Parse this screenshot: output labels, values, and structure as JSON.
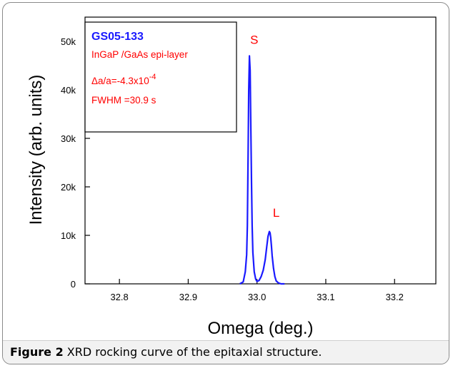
{
  "caption": {
    "label": "Figure 2",
    "text": " XRD rocking curve of the epitaxial structure",
    "period": "."
  },
  "chart_data": {
    "type": "line",
    "title": "",
    "xlabel": "Omega (deg.)",
    "ylabel": "Intensity (arb. units)",
    "xlim": [
      32.75,
      33.26
    ],
    "ylim": [
      0,
      55000
    ],
    "xticks": [
      32.8,
      32.9,
      33.0,
      33.1,
      33.2
    ],
    "xtick_labels": [
      "32.8",
      "32.9",
      "33.0",
      "33.1",
      "33.2"
    ],
    "yticks": [
      0,
      10000,
      20000,
      30000,
      40000,
      50000
    ],
    "ytick_labels": [
      "0",
      "10k",
      "20k",
      "30k",
      "40k",
      "50k"
    ],
    "grid": false,
    "series": [
      {
        "color": "#1a1aff",
        "x": [
          32.975,
          32.98,
          32.983,
          32.985,
          32.986,
          32.987,
          32.988,
          32.989,
          32.99,
          32.991,
          32.992,
          32.993,
          32.994,
          32.996,
          32.998,
          33.0,
          33.003,
          33.006,
          33.009,
          33.012,
          33.014,
          33.016,
          33.018,
          33.019,
          33.02,
          33.021,
          33.022,
          33.024,
          33.026,
          33.028,
          33.031,
          33.035,
          33.04
        ],
        "y": [
          0,
          400,
          2500,
          6000,
          12000,
          26000,
          40000,
          47000,
          44000,
          33000,
          21000,
          12000,
          6500,
          2500,
          1000,
          500,
          700,
          1500,
          2800,
          5000,
          7500,
          9800,
          10800,
          10500,
          9500,
          7800,
          5800,
          3200,
          1500,
          600,
          200,
          0,
          0
        ]
      }
    ],
    "annotations": [
      {
        "text": "S",
        "x": 32.996,
        "y": 49500
      },
      {
        "text": "L",
        "x": 33.028,
        "y": 13800
      }
    ],
    "legend": {
      "placement": "top-left",
      "title": "GS05-133",
      "line1": "InGaP /GaAs epi-layer",
      "line2_prefix": "Δa/a=-4.3x10",
      "line2_exp": "-4",
      "line3": "FWHM =30.9 s"
    },
    "colors": {
      "curve": "#1a1aff",
      "legend_title": "#1a1aff",
      "annotation": "#ff0000"
    }
  }
}
